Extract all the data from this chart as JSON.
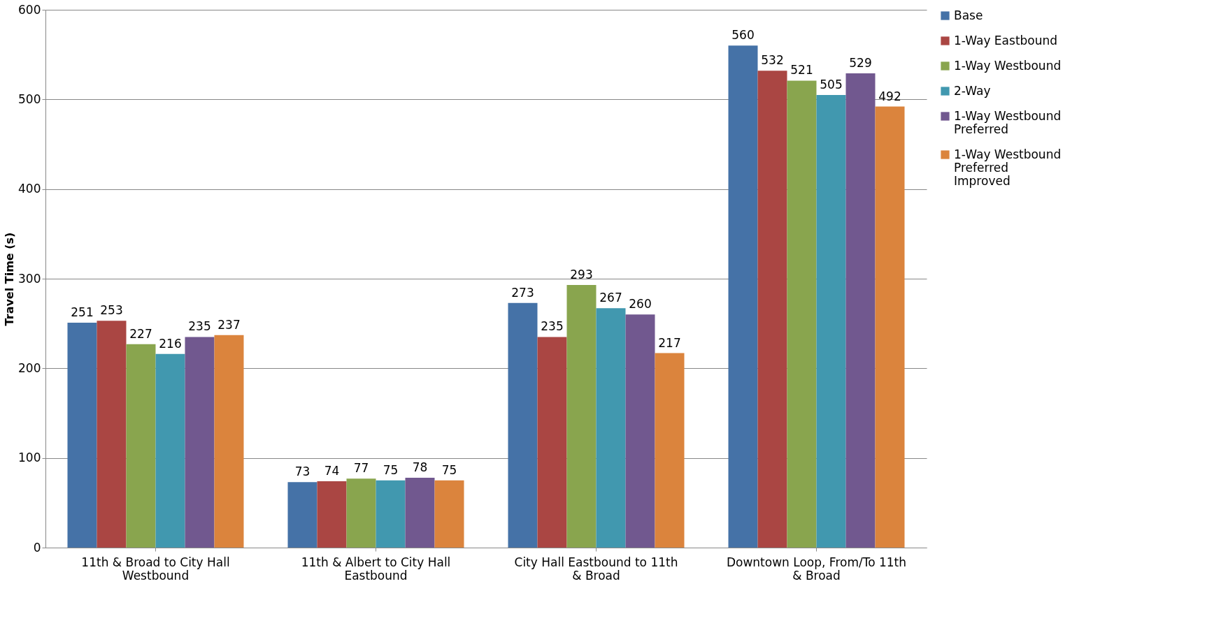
{
  "chart_data": {
    "type": "bar",
    "ylabel": "Travel Time (s)",
    "categories": [
      "11th & Broad to City Hall Westbound",
      "11th & Albert to City Hall Eastbound",
      "City Hall Eastbound to 11th & Broad",
      "Downtown Loop, From/To 11th & Broad"
    ],
    "series": [
      {
        "name": "Base",
        "color": "#4572a7",
        "values": [
          251,
          73,
          273,
          560
        ]
      },
      {
        "name": "1-Way Eastbound",
        "color": "#aa4643",
        "values": [
          253,
          74,
          235,
          532
        ]
      },
      {
        "name": "1-Way Westbound",
        "color": "#89a54e",
        "values": [
          227,
          77,
          293,
          521
        ]
      },
      {
        "name": "2-Way",
        "color": "#4198af",
        "values": [
          216,
          75,
          267,
          505
        ]
      },
      {
        "name": "1-Way Westbound Preferred",
        "color": "#71588f",
        "values": [
          235,
          78,
          260,
          529
        ]
      },
      {
        "name": "1-Way Westbound Preferred Improved",
        "color": "#db843d",
        "values": [
          237,
          75,
          217,
          492
        ]
      }
    ],
    "ylim": [
      0,
      600
    ],
    "yticks": [
      0,
      100,
      200,
      300,
      400,
      500,
      600
    ],
    "grid": "y",
    "legend": "right",
    "data_labels": true
  }
}
